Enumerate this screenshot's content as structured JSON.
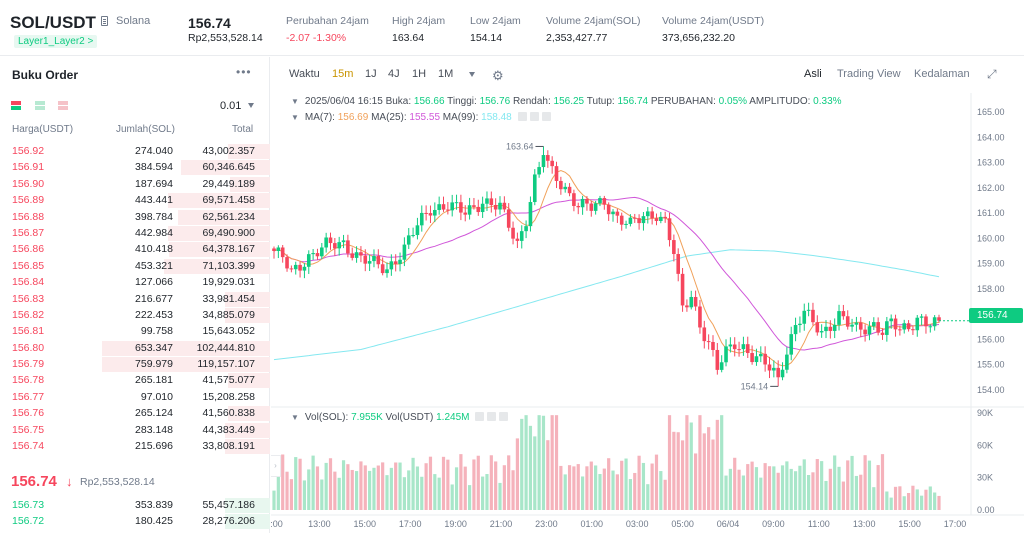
{
  "header": {
    "pair": "SOL/USDT",
    "coin_name": "Solana",
    "badge": "Layer1_Layer2 >",
    "last_price": "156.74",
    "last_price_idr": "Rp2,553,528.14",
    "stats": [
      {
        "label": "Perubahan 24jam",
        "value": "-2.07 -1.30%",
        "negative": true
      },
      {
        "label": "High 24jam",
        "value": "163.64",
        "negative": false
      },
      {
        "label": "Low 24jam",
        "value": "154.14",
        "negative": false
      },
      {
        "label": "Volume 24jam(SOL)",
        "value": "2,353,427.77",
        "negative": false
      },
      {
        "label": "Volume 24jam(USDT)",
        "value": "373,656,232.20",
        "negative": false
      }
    ]
  },
  "orderbook": {
    "title": "Buku Order",
    "more": "•••",
    "precision": "0.01",
    "col_price": "Harga(USDT)",
    "col_amount": "Jumlah(SOL)",
    "col_total": "Total",
    "asks": [
      {
        "price": "156.92",
        "amount": "274.040",
        "total": "43,002.357",
        "depth": 0.25
      },
      {
        "price": "156.91",
        "amount": "384.594",
        "total": "60,346.645",
        "depth": 0.53
      },
      {
        "price": "156.90",
        "amount": "187.694",
        "total": "29,449.189",
        "depth": 0.24
      },
      {
        "price": "156.89",
        "amount": "443.441",
        "total": "69,571.458",
        "depth": 0.61
      },
      {
        "price": "156.88",
        "amount": "398.784",
        "total": "62,561.234",
        "depth": 0.55
      },
      {
        "price": "156.87",
        "amount": "442.984",
        "total": "69,490.900",
        "depth": 0.61
      },
      {
        "price": "156.86",
        "amount": "410.418",
        "total": "64,378.167",
        "depth": 0.6
      },
      {
        "price": "156.85",
        "amount": "453.321",
        "total": "71,103.399",
        "depth": 0.63
      },
      {
        "price": "156.84",
        "amount": "127.066",
        "total": "19,929.031",
        "depth": 0.0
      },
      {
        "price": "156.83",
        "amount": "216.677",
        "total": "33,981.454",
        "depth": 0.27
      },
      {
        "price": "156.82",
        "amount": "222.453",
        "total": "34,885.079",
        "depth": 0.27
      },
      {
        "price": "156.81",
        "amount": "99.758",
        "total": "15,643.052",
        "depth": 0.0
      },
      {
        "price": "156.80",
        "amount": "653.347",
        "total": "102,444.810",
        "depth": 1.0
      },
      {
        "price": "156.79",
        "amount": "759.979",
        "total": "119,157.107",
        "depth": 1.0
      },
      {
        "price": "156.78",
        "amount": "265.181",
        "total": "41,575.077",
        "depth": 0.25
      },
      {
        "price": "156.77",
        "amount": "97.010",
        "total": "15,208.258",
        "depth": 0.0
      },
      {
        "price": "156.76",
        "amount": "265.124",
        "total": "41,560.838",
        "depth": 0.25
      },
      {
        "price": "156.75",
        "amount": "283.148",
        "total": "44,383.449",
        "depth": 0.27
      },
      {
        "price": "156.74",
        "amount": "215.696",
        "total": "33,808.191",
        "depth": 0.27
      }
    ],
    "mid_price": "156.74",
    "mid_arrow": "↓",
    "mid_price_idr": "Rp2,553,528.14",
    "bids": [
      {
        "price": "156.73",
        "amount": "353.839",
        "total": "55,457.186",
        "depth": 0.27
      },
      {
        "price": "156.72",
        "amount": "180.425",
        "total": "28,276.206",
        "depth": 0.27
      }
    ]
  },
  "toolbar": {
    "left": [
      {
        "label": "Waktu",
        "active": false
      },
      {
        "label": "15m",
        "active": true
      },
      {
        "label": "1J",
        "active": false
      },
      {
        "label": "4J",
        "active": false
      },
      {
        "label": "1H",
        "active": false
      },
      {
        "label": "1M",
        "active": false
      }
    ],
    "right": [
      {
        "label": "Asli",
        "active": true
      },
      {
        "label": "Trading View",
        "active": false
      },
      {
        "label": "Kedalaman",
        "active": false
      }
    ],
    "icons": {
      "more": "chevron-down-icon",
      "settings": "gear-icon",
      "expand": "expand-icon"
    }
  },
  "chart_legend": {
    "datetime": "2025/06/04 16:15",
    "open_label": "Buka:",
    "open": "156.66",
    "high_label": "Tinggi:",
    "high": "156.76",
    "low_label": "Rendah:",
    "low": "156.25",
    "close_label": "Tutup:",
    "close": "156.74",
    "change_label": "PERUBAHAN:",
    "change": "0.05%",
    "amp_label": "AMPLITUDO:",
    "amp": "0.33%",
    "ma7_label": "MA(7):",
    "ma7": "156.69",
    "ma25_label": "MA(25):",
    "ma25": "155.55",
    "ma99_label": "MA(99):",
    "ma99": "158.48",
    "vol_sol_label": "Vol(SOL):",
    "vol_sol": "7.955K",
    "vol_usdt_label": "Vol(USDT)",
    "vol_usdt": "1.245M"
  },
  "colors": {
    "up": "#0ecb81",
    "down": "#f6465d",
    "ma7": "#f0a15a",
    "ma25": "#d057d9",
    "ma99": "#84e8f0",
    "accent": "#c99400"
  },
  "chart_data": {
    "type": "candlestick",
    "interval": "15m",
    "price_axis": {
      "ticks": [
        "165.00",
        "164.00",
        "163.00",
        "162.00",
        "161.00",
        "160.00",
        "159.00",
        "158.00",
        "157.00",
        "156.00",
        "155.00",
        "154.00"
      ],
      "range": [
        153.5,
        165.3
      ]
    },
    "volume_axis": {
      "ticks": [
        "90K",
        "60K",
        "30K",
        "0.00"
      ],
      "range": [
        0,
        90000
      ]
    },
    "time_ticks": [
      "1:00",
      "13:00",
      "15:00",
      "17:00",
      "19:00",
      "21:00",
      "23:00",
      "01:00",
      "03:00",
      "05:00",
      "06/04",
      "09:00",
      "11:00",
      "13:00",
      "15:00",
      "17:00"
    ],
    "current_price": "156.74",
    "high_marker": {
      "label": "163.64",
      "value": 163.64
    },
    "low_marker": {
      "label": "154.14",
      "value": 154.14
    },
    "anchors": [
      [
        0,
        159.5
      ],
      [
        2,
        159.2
      ],
      [
        4,
        158.6
      ],
      [
        8,
        159.3
      ],
      [
        12,
        159.7
      ],
      [
        16,
        159.8
      ],
      [
        20,
        159.2
      ],
      [
        24,
        158.9
      ],
      [
        26,
        158.8
      ],
      [
        30,
        159.6
      ],
      [
        33,
        160.5
      ],
      [
        36,
        161.2
      ],
      [
        40,
        161.3
      ],
      [
        44,
        161.0
      ],
      [
        48,
        161.5
      ],
      [
        52,
        161.2
      ],
      [
        56,
        159.8
      ],
      [
        58,
        160.8
      ],
      [
        60,
        162.3
      ],
      [
        62,
        163.2
      ],
      [
        64,
        162.6
      ],
      [
        67,
        162.0
      ],
      [
        70,
        161.3
      ],
      [
        73,
        161.2
      ],
      [
        76,
        161.5
      ],
      [
        79,
        160.8
      ],
      [
        82,
        160.5
      ],
      [
        85,
        160.9
      ],
      [
        88,
        161.0
      ],
      [
        90,
        160.6
      ],
      [
        92,
        159.4
      ],
      [
        94,
        157.2
      ],
      [
        96,
        157.8
      ],
      [
        98,
        156.6
      ],
      [
        100,
        155.8
      ],
      [
        102,
        154.8
      ],
      [
        104,
        155.5
      ],
      [
        106,
        155.9
      ],
      [
        108,
        155.7
      ],
      [
        110,
        155.3
      ],
      [
        112,
        155.1
      ],
      [
        114,
        154.9
      ],
      [
        116,
        154.6
      ],
      [
        118,
        155.6
      ],
      [
        120,
        156.5
      ],
      [
        122,
        157.0
      ],
      [
        124,
        156.7
      ],
      [
        126,
        156.3
      ],
      [
        128,
        156.6
      ],
      [
        130,
        156.9
      ],
      [
        132,
        156.6
      ],
      [
        134,
        156.4
      ],
      [
        136,
        156.5
      ],
      [
        138,
        156.6
      ],
      [
        140,
        156.3
      ],
      [
        142,
        156.6
      ],
      [
        144,
        156.4
      ],
      [
        146,
        156.5
      ],
      [
        148,
        156.9
      ],
      [
        150,
        156.6
      ],
      [
        152,
        156.6
      ],
      [
        153,
        156.74
      ]
    ],
    "ma99_anchors": [
      [
        0,
        155.2
      ],
      [
        20,
        155.6
      ],
      [
        40,
        156.5
      ],
      [
        60,
        157.5
      ],
      [
        80,
        158.5
      ],
      [
        95,
        159.3
      ],
      [
        105,
        159.55
      ],
      [
        115,
        159.5
      ],
      [
        125,
        159.3
      ],
      [
        135,
        159.05
      ],
      [
        145,
        158.75
      ],
      [
        153,
        158.48
      ]
    ]
  }
}
